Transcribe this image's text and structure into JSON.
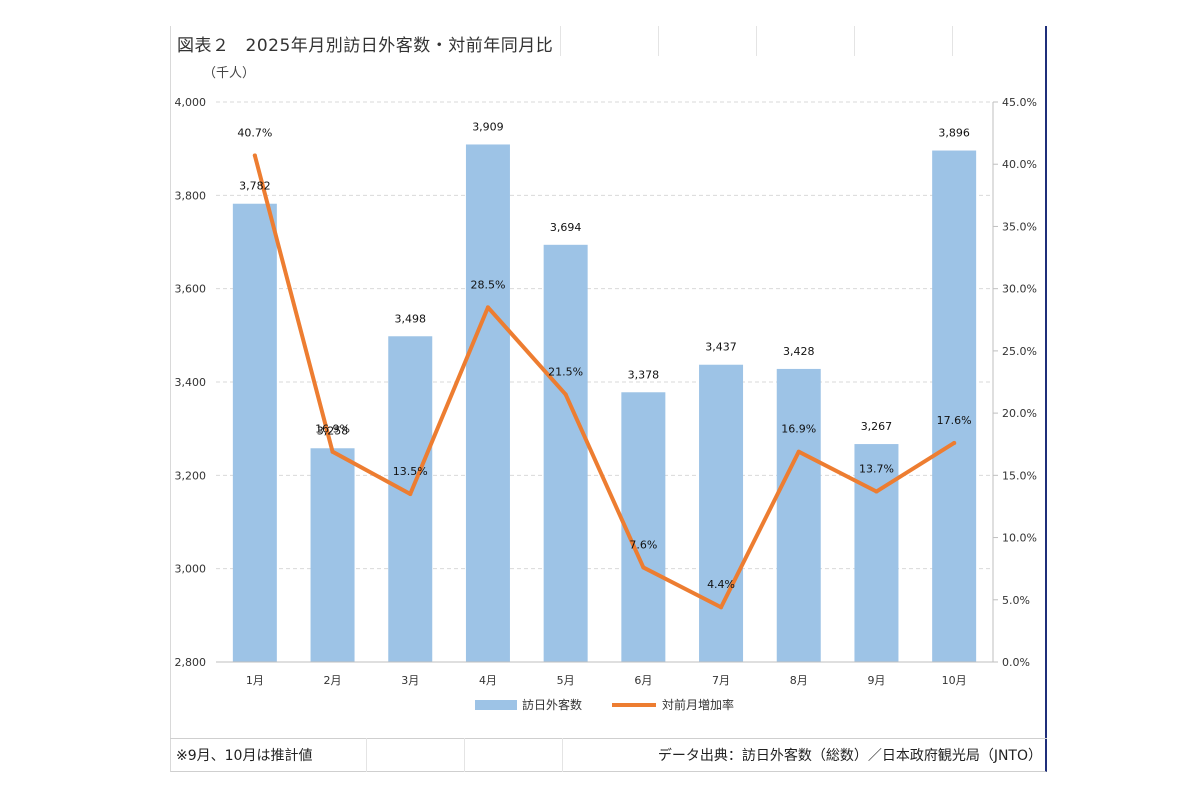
{
  "title": {
    "label": "図表２",
    "text": "2025年月別訪日外客数・対前年同月比"
  },
  "unit_label": "（千人）",
  "footer": {
    "note": "※9月、10月は推計値",
    "source": "データ出典：訪日外客数（総数）／日本政府観光局（JNTO）"
  },
  "chart_data": {
    "type": "bar",
    "categories": [
      "1月",
      "2月",
      "3月",
      "4月",
      "5月",
      "6月",
      "7月",
      "8月",
      "9月",
      "10月"
    ],
    "series": [
      {
        "name": "訪日外客数",
        "type": "bar",
        "axis": "left",
        "color": "#9dc3e6",
        "values": [
          3782,
          3258,
          3498,
          3909,
          3694,
          3378,
          3437,
          3428,
          3267,
          3896
        ],
        "labels": [
          "3,782",
          "3,258",
          "3,498",
          "3,909",
          "3,694",
          "3,378",
          "3,437",
          "3,428",
          "3,267",
          "3,896"
        ]
      },
      {
        "name": "対前月増加率",
        "type": "line",
        "axis": "right",
        "color": "#ed7d31",
        "values": [
          40.7,
          16.9,
          13.5,
          28.5,
          21.5,
          7.6,
          4.4,
          16.9,
          13.7,
          17.6
        ],
        "labels": [
          "40.7%",
          "16.9%",
          "13.5%",
          "28.5%",
          "21.5%",
          "7.6%",
          "4.4%",
          "16.9%",
          "13.7%",
          "17.6%"
        ]
      }
    ],
    "y_left": {
      "min": 2800,
      "max": 4000,
      "step": 200,
      "tick_labels": [
        "2,800",
        "3,000",
        "3,200",
        "3,400",
        "3,600",
        "3,800",
        "4,000"
      ]
    },
    "y_right": {
      "min": 0,
      "max": 45,
      "step": 5,
      "tick_labels": [
        "0.0%",
        "5.0%",
        "10.0%",
        "15.0%",
        "20.0%",
        "25.0%",
        "30.0%",
        "35.0%",
        "40.0%",
        "45.0%"
      ]
    },
    "grid": true,
    "legend": "bottom"
  }
}
